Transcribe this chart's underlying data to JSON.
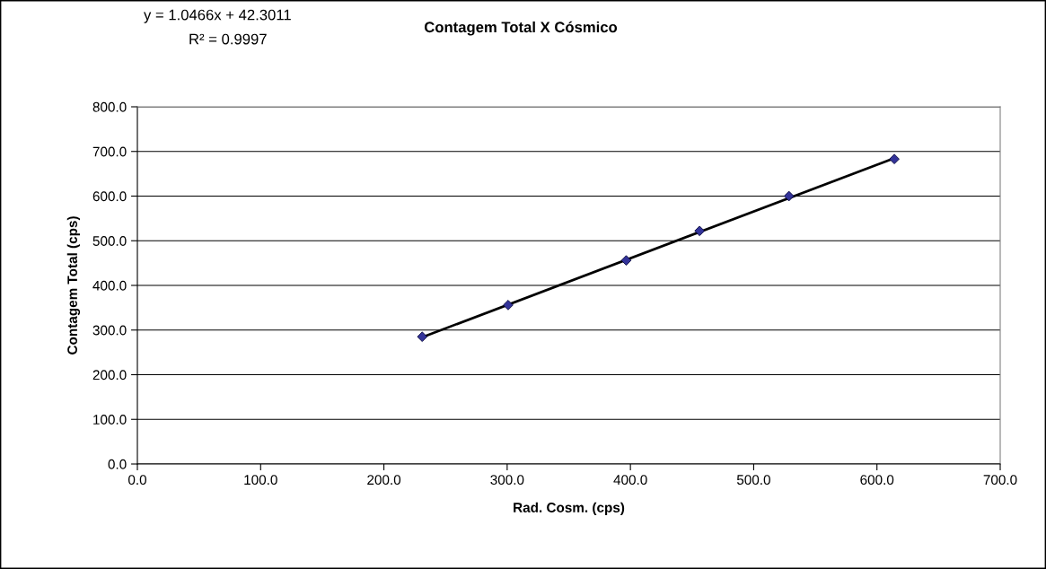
{
  "chart_data": {
    "type": "scatter",
    "title": "Contagem Total X Cósmico",
    "xlabel": "Rad. Cosm. (cps)",
    "ylabel": "Contagem Total (cps)",
    "annotations": [
      "y = 1.0466x + 42.3011",
      "R² = 0.9997"
    ],
    "x": [
      231.1,
      300.8,
      396.6,
      456.1,
      528.6,
      614.1
    ],
    "series": [
      {
        "color": "#333399",
        "marker": "diamond",
        "values": [
          285,
          356,
          456,
          522,
          600,
          683
        ]
      },
      {
        "type": "line",
        "color": "#000000",
        "marker": "none",
        "x": [
          231.1,
          614.1
        ],
        "values": [
          284,
          685
        ]
      }
    ],
    "xlim": [
      0,
      700
    ],
    "ylim": [
      0,
      800
    ],
    "xticks": [
      {
        "value": 0,
        "label": "0.0"
      },
      {
        "value": 100,
        "label": "100.0"
      },
      {
        "value": 200,
        "label": "200.0"
      },
      {
        "value": 300,
        "label": "300.0"
      },
      {
        "value": 400,
        "label": "400.0"
      },
      {
        "value": 500,
        "label": "500.0"
      },
      {
        "value": 600,
        "label": "600.0"
      },
      {
        "value": 700,
        "label": "700.0"
      }
    ],
    "yticks": [
      {
        "value": 0,
        "label": "0.0"
      },
      {
        "value": 100,
        "label": "100.0"
      },
      {
        "value": 200,
        "label": "200.0"
      },
      {
        "value": 300,
        "label": "300.0"
      },
      {
        "value": 400,
        "label": "400.0"
      },
      {
        "value": 500,
        "label": "500.0"
      },
      {
        "value": 600,
        "label": "600.0"
      },
      {
        "value": 700,
        "label": "700.0"
      },
      {
        "value": 800,
        "label": "800.0"
      }
    ],
    "grid": "y",
    "legend": false
  }
}
